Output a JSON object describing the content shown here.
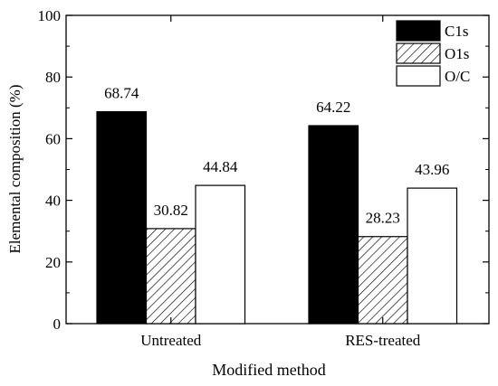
{
  "chart_data": {
    "type": "bar",
    "title": "",
    "xlabel": "Modified method",
    "ylabel": "Elemental composition (%)",
    "ylim": [
      0,
      100
    ],
    "yticks": [
      0,
      20,
      40,
      60,
      80,
      100
    ],
    "grid": false,
    "legend_position": "top-right",
    "categories": [
      "Untreated",
      "RES-treated"
    ],
    "series": [
      {
        "name": "C1s",
        "values": [
          68.74,
          64.22
        ],
        "fill": "solid-black",
        "labels": [
          "68.74",
          "64.22"
        ]
      },
      {
        "name": "O1s",
        "values": [
          30.82,
          28.23
        ],
        "fill": "diagonal-hatch",
        "labels": [
          "30.82",
          "28.23"
        ]
      },
      {
        "name": "O/C",
        "values": [
          44.84,
          43.96
        ],
        "fill": "white",
        "labels": [
          "44.84",
          "43.96"
        ]
      }
    ]
  },
  "colors": {
    "axis": "#000000",
    "c1s_fill": "#000000",
    "o1s_hatch": "#000000",
    "oc_fill": "#ffffff"
  }
}
